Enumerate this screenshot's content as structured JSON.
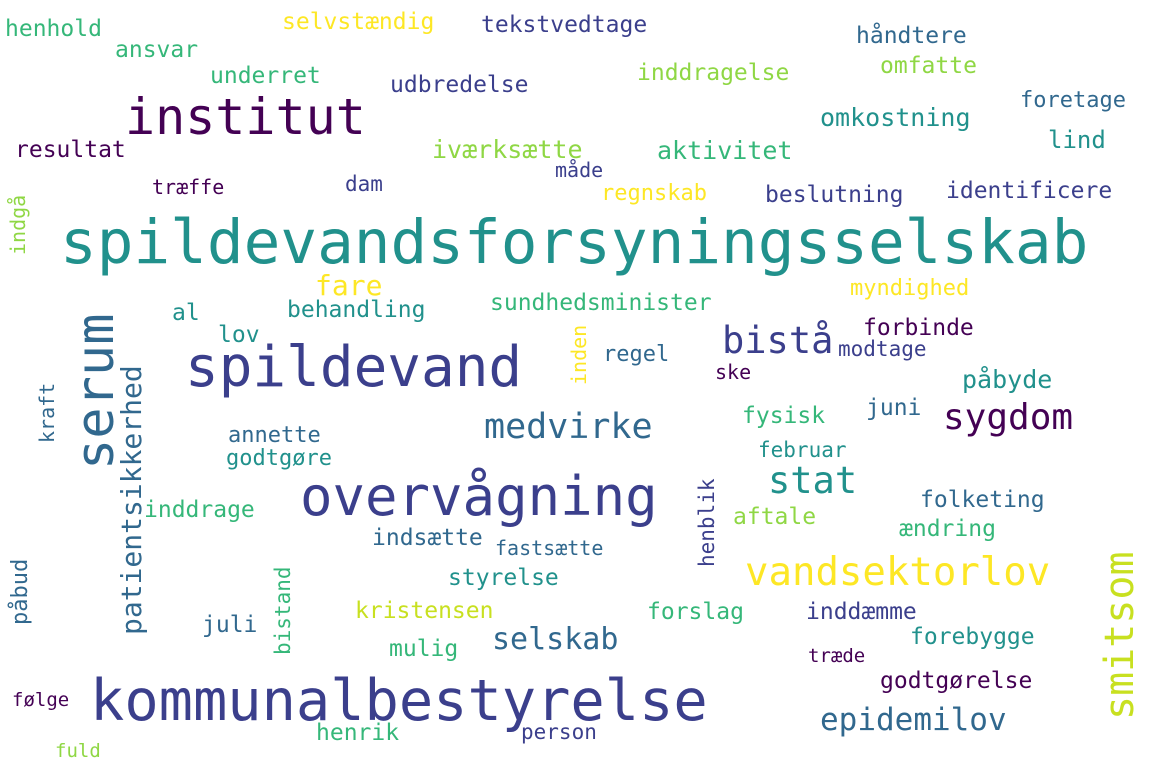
{
  "background": "#ffffff",
  "palette": {
    "dark_purple": "#440154",
    "indigo": "#3b3f8c",
    "blue": "#31688e",
    "teal": "#21918c",
    "green": "#35b779",
    "lime": "#8fd744",
    "yellow": "#fde725"
  },
  "words": [
    {
      "text": "spildevandsforsyningsselskab",
      "color": "#21918c",
      "orientation": "horizontal"
    },
    {
      "text": "kommunalbestyrelse",
      "color": "#3b3f8c",
      "orientation": "horizontal"
    },
    {
      "text": "overvågning",
      "color": "#3b3f8c",
      "orientation": "horizontal"
    },
    {
      "text": "spildevand",
      "color": "#3b3f8c",
      "orientation": "horizontal"
    },
    {
      "text": "institut",
      "color": "#440154",
      "orientation": "horizontal"
    },
    {
      "text": "serum",
      "color": "#31688e",
      "orientation": "vertical"
    },
    {
      "text": "vandsektorlov",
      "color": "#fde725",
      "orientation": "horizontal"
    },
    {
      "text": "smitsom",
      "color": "#c8e020",
      "orientation": "vertical"
    },
    {
      "text": "patientsikkerhed",
      "color": "#31688e",
      "orientation": "vertical"
    },
    {
      "text": "sygdom",
      "color": "#440154",
      "orientation": "horizontal"
    },
    {
      "text": "medvirke",
      "color": "#31688e",
      "orientation": "horizontal"
    },
    {
      "text": "stat",
      "color": "#21918c",
      "orientation": "horizontal"
    },
    {
      "text": "bistå",
      "color": "#3b3f8c",
      "orientation": "horizontal"
    },
    {
      "text": "epidemilov",
      "color": "#31688e",
      "orientation": "horizontal"
    },
    {
      "text": "selskab",
      "color": "#31688e",
      "orientation": "horizontal"
    },
    {
      "text": "fare",
      "color": "#fde725",
      "orientation": "horizontal"
    },
    {
      "text": "selvstændig",
      "color": "#fde725",
      "orientation": "horizontal"
    },
    {
      "text": "tekstvedtage",
      "color": "#3b3f8c",
      "orientation": "horizontal"
    },
    {
      "text": "henhold",
      "color": "#35b779",
      "orientation": "horizontal"
    },
    {
      "text": "ansvar",
      "color": "#35b779",
      "orientation": "horizontal"
    },
    {
      "text": "håndtere",
      "color": "#31688e",
      "orientation": "horizontal"
    },
    {
      "text": "omfatte",
      "color": "#8fd744",
      "orientation": "horizontal"
    },
    {
      "text": "underret",
      "color": "#35b779",
      "orientation": "horizontal"
    },
    {
      "text": "udbredelse",
      "color": "#3b3f8c",
      "orientation": "horizontal"
    },
    {
      "text": "inddragelse",
      "color": "#8fd744",
      "orientation": "horizontal"
    },
    {
      "text": "foretage",
      "color": "#31688e",
      "orientation": "horizontal"
    },
    {
      "text": "omkostning",
      "color": "#21918c",
      "orientation": "horizontal"
    },
    {
      "text": "lind",
      "color": "#21918c",
      "orientation": "horizontal"
    },
    {
      "text": "resultat",
      "color": "#440154",
      "orientation": "horizontal"
    },
    {
      "text": "iværksætte",
      "color": "#8fd744",
      "orientation": "horizontal"
    },
    {
      "text": "aktivitet",
      "color": "#35b779",
      "orientation": "horizontal"
    },
    {
      "text": "måde",
      "color": "#3b3f8c",
      "orientation": "horizontal"
    },
    {
      "text": "træffe",
      "color": "#440154",
      "orientation": "horizontal"
    },
    {
      "text": "dam",
      "color": "#3b3f8c",
      "orientation": "horizontal"
    },
    {
      "text": "regnskab",
      "color": "#fde725",
      "orientation": "horizontal"
    },
    {
      "text": "beslutning",
      "color": "#3b3f8c",
      "orientation": "horizontal"
    },
    {
      "text": "identificere",
      "color": "#3b3f8c",
      "orientation": "horizontal"
    },
    {
      "text": "indgå",
      "color": "#8fd744",
      "orientation": "vertical"
    },
    {
      "text": "sundhedsminister",
      "color": "#35b779",
      "orientation": "horizontal"
    },
    {
      "text": "myndighed",
      "color": "#fde725",
      "orientation": "horizontal"
    },
    {
      "text": "al",
      "color": "#21918c",
      "orientation": "horizontal"
    },
    {
      "text": "behandling",
      "color": "#21918c",
      "orientation": "horizontal"
    },
    {
      "text": "lov",
      "color": "#21918c",
      "orientation": "horizontal"
    },
    {
      "text": "forbinde",
      "color": "#440154",
      "orientation": "horizontal"
    },
    {
      "text": "modtage",
      "color": "#3b3f8c",
      "orientation": "horizontal"
    },
    {
      "text": "inden",
      "color": "#fde725",
      "orientation": "vertical"
    },
    {
      "text": "regel",
      "color": "#31688e",
      "orientation": "horizontal"
    },
    {
      "text": "ske",
      "color": "#440154",
      "orientation": "horizontal"
    },
    {
      "text": "påbyde",
      "color": "#21918c",
      "orientation": "horizontal"
    },
    {
      "text": "kraft",
      "color": "#31688e",
      "orientation": "vertical"
    },
    {
      "text": "fysisk",
      "color": "#35b779",
      "orientation": "horizontal"
    },
    {
      "text": "juni",
      "color": "#31688e",
      "orientation": "horizontal"
    },
    {
      "text": "annette",
      "color": "#31688e",
      "orientation": "horizontal"
    },
    {
      "text": "godtgøre",
      "color": "#21918c",
      "orientation": "horizontal"
    },
    {
      "text": "februar",
      "color": "#21918c",
      "orientation": "horizontal"
    },
    {
      "text": "henblik",
      "color": "#3b3f8c",
      "orientation": "vertical"
    },
    {
      "text": "inddrage",
      "color": "#35b779",
      "orientation": "horizontal"
    },
    {
      "text": "folketing",
      "color": "#31688e",
      "orientation": "horizontal"
    },
    {
      "text": "aftale",
      "color": "#8fd744",
      "orientation": "horizontal"
    },
    {
      "text": "ændring",
      "color": "#35b779",
      "orientation": "horizontal"
    },
    {
      "text": "indsætte",
      "color": "#31688e",
      "orientation": "horizontal"
    },
    {
      "text": "fastsætte",
      "color": "#31688e",
      "orientation": "horizontal"
    },
    {
      "text": "påbud",
      "color": "#31688e",
      "orientation": "vertical"
    },
    {
      "text": "bistand",
      "color": "#35b779",
      "orientation": "vertical"
    },
    {
      "text": "styrelse",
      "color": "#21918c",
      "orientation": "horizontal"
    },
    {
      "text": "kristensen",
      "color": "#c8e020",
      "orientation": "horizontal"
    },
    {
      "text": "forslag",
      "color": "#35b779",
      "orientation": "horizontal"
    },
    {
      "text": "inddæmme",
      "color": "#3b3f8c",
      "orientation": "horizontal"
    },
    {
      "text": "juli",
      "color": "#31688e",
      "orientation": "horizontal"
    },
    {
      "text": "mulig",
      "color": "#35b779",
      "orientation": "horizontal"
    },
    {
      "text": "forebygge",
      "color": "#21918c",
      "orientation": "horizontal"
    },
    {
      "text": "træde",
      "color": "#440154",
      "orientation": "horizontal"
    },
    {
      "text": "godtgørelse",
      "color": "#440154",
      "orientation": "horizontal"
    },
    {
      "text": "følge",
      "color": "#440154",
      "orientation": "horizontal"
    },
    {
      "text": "henrik",
      "color": "#35b779",
      "orientation": "horizontal"
    },
    {
      "text": "person",
      "color": "#3b3f8c",
      "orientation": "horizontal"
    },
    {
      "text": "fuld",
      "color": "#8fd744",
      "orientation": "horizontal"
    }
  ]
}
